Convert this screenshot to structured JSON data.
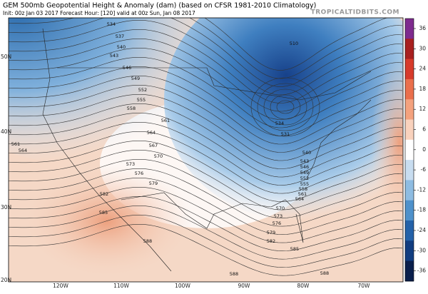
{
  "header": {
    "title": "GEM 500mb Geopotential Height & Anomaly (dam) (based on CFSR 1981-2010 Climatology)",
    "subtitle": "Init: 00z Jan 03 2017   Forecast Hour: [120]   valid at 00z Sun, Jan 08 2017",
    "watermark": "TROPICALTIDBITS.COM"
  },
  "map": {
    "latitude_labels": [
      "50N",
      "40N",
      "30N",
      "20N"
    ],
    "longitude_labels": [
      "120W",
      "110W",
      "100W",
      "90W",
      "80W",
      "70W"
    ],
    "contour_labels": [
      "534",
      "537",
      "540",
      "543",
      "546",
      "549",
      "552",
      "555",
      "558",
      "561",
      "561",
      "564",
      "564",
      "567",
      "570",
      "573",
      "576",
      "579",
      "582",
      "585",
      "588",
      "510",
      "534",
      "531",
      "540",
      "543",
      "546",
      "549",
      "552",
      "555",
      "558",
      "561",
      "564",
      "570",
      "573",
      "576",
      "579",
      "582",
      "585",
      "588",
      "588"
    ]
  },
  "colorbar": {
    "ticks": [
      36,
      30,
      24,
      18,
      12,
      6,
      0,
      -6,
      -12,
      -18,
      -24,
      -30,
      -36
    ]
  }
}
